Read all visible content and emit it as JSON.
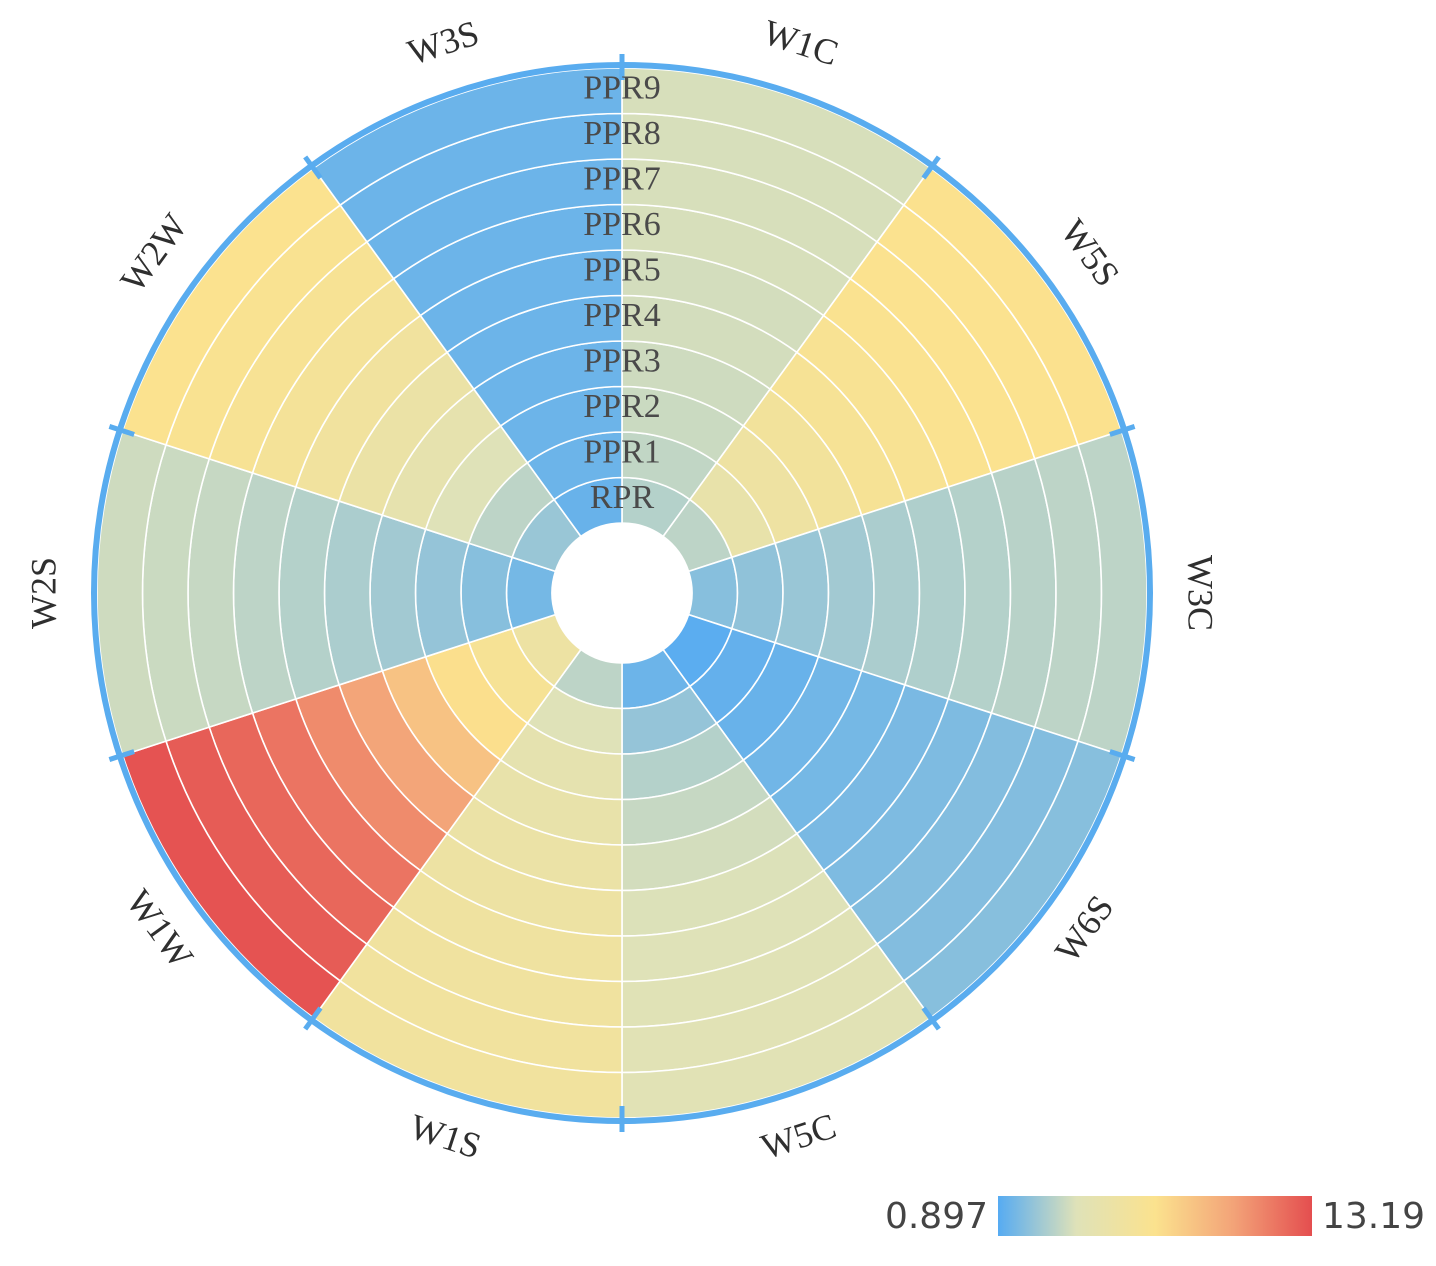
{
  "chart_data": {
    "type": "heatmap",
    "title": "",
    "sectors": [
      "W1C",
      "W5S",
      "W3C",
      "W6S",
      "W5C",
      "W1S",
      "W1W",
      "W2S",
      "W2W",
      "W3S"
    ],
    "rings": [
      "RPR",
      "PPR1",
      "PPR2",
      "PPR3",
      "PPR4",
      "PPR5",
      "PPR6",
      "PPR7",
      "PPR8",
      "PPR9"
    ],
    "values": [
      [
        3.0,
        3.3,
        3.5,
        3.6,
        3.7,
        3.7,
        3.8,
        3.8,
        3.8,
        3.8
      ],
      [
        3.2,
        5.0,
        5.6,
        6.1,
        6.5,
        6.7,
        6.9,
        7.0,
        7.0,
        7.1
      ],
      [
        2.0,
        2.2,
        2.4,
        2.6,
        2.8,
        2.9,
        3.0,
        3.1,
        3.2,
        3.2
      ],
      [
        1.0,
        1.2,
        1.3,
        1.5,
        1.6,
        1.7,
        1.8,
        1.9,
        1.9,
        2.0
      ],
      [
        1.4,
        2.3,
        3.0,
        3.4,
        3.7,
        3.9,
        4.0,
        4.1,
        4.2,
        4.2
      ],
      [
        3.2,
        4.0,
        4.6,
        5.0,
        5.3,
        5.5,
        5.7,
        5.8,
        5.9,
        5.9
      ],
      [
        5.5,
        6.5,
        7.2,
        8.6,
        10.0,
        11.0,
        11.8,
        12.3,
        12.7,
        13.0
      ],
      [
        1.6,
        2.0,
        2.3,
        2.6,
        2.8,
        3.0,
        3.2,
        3.4,
        3.5,
        3.6
      ],
      [
        2.4,
        3.2,
        4.0,
        4.7,
        5.3,
        5.9,
        6.3,
        6.6,
        6.8,
        7.0
      ],
      [
        1.3,
        1.4,
        1.4,
        1.4,
        1.4,
        1.4,
        1.4,
        1.4,
        1.4,
        1.4
      ]
    ],
    "colorbar": {
      "min": 0.897,
      "max": 13.19,
      "min_label": "0.897",
      "max_label": "13.19",
      "colors": [
        "#56abf2",
        "#dfe2b8",
        "#fbe28e",
        "#f3a378",
        "#e44e4f"
      ]
    },
    "outline_color": "#59acef",
    "grid_color": "#ffffff"
  }
}
